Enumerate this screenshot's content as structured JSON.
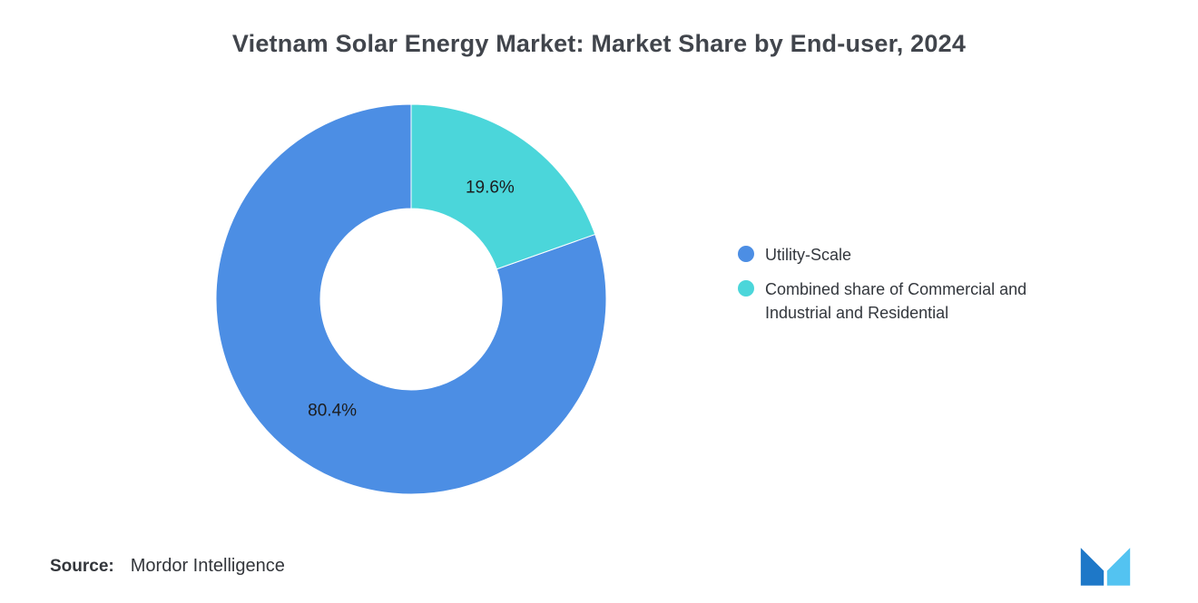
{
  "page": {
    "source_label": "Source:",
    "source_value": "Mordor Intelligence"
  },
  "chart_data": {
    "type": "pie",
    "subtype": "donut",
    "title": "Vietnam Solar Energy Market: Market Share by End-user, 2024",
    "slices": [
      {
        "label": "Utility-Scale",
        "value": 80.4,
        "data_label": "80.4%",
        "color": "#4C8EE4"
      },
      {
        "label": "Combined share of Commercial and Industrial and Residential",
        "value": 19.6,
        "data_label": "19.6%",
        "color": "#4BD6DA"
      }
    ],
    "start_angle_deg": 0,
    "direction": "counterclockwise",
    "inner_radius_ratio": 0.465,
    "legend_position": "right",
    "data_label_color": "#1c1d1f",
    "data_label_font_size": 19
  },
  "colors": {
    "background": "#ffffff",
    "title": "#41454c",
    "legend_text": "#33373d",
    "logo_dark": "#1e78c8",
    "logo_light": "#53c3f1"
  }
}
